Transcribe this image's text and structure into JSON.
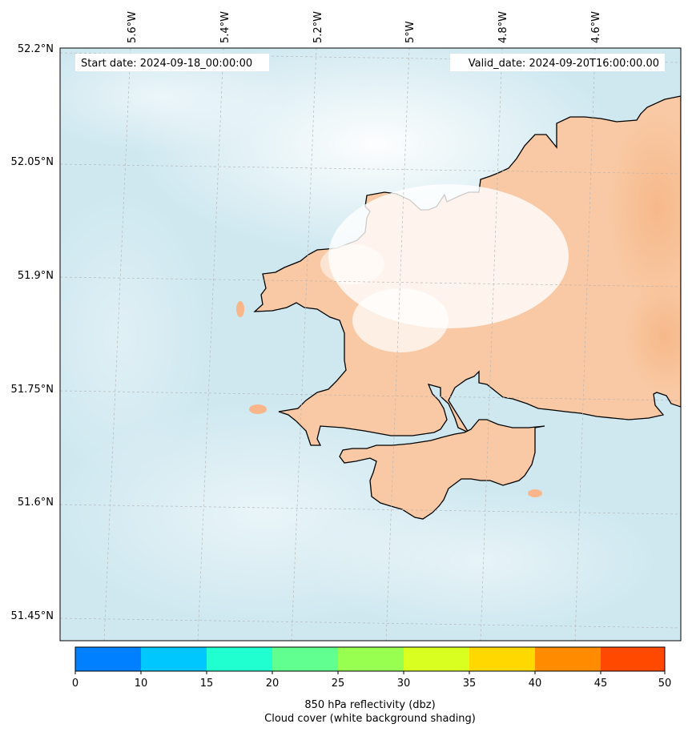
{
  "map": {
    "start_date": "Start date: 2024-09-18_00:00:00",
    "valid_date": "Valid_date: 2024-09-20T16:00:00.00",
    "longitude_labels": [
      "5.6°W",
      "5.4°W",
      "5.2°W",
      "5°W",
      "4.8°W",
      "4.6°W"
    ],
    "latitude_labels": [
      "52.2°N",
      "52.05°N",
      "51.9°N",
      "51.75°N",
      "51.6°N",
      "51.45°N"
    ],
    "land_color": "#f8c9a4",
    "sea_cloud_color": "#cfe8f0"
  },
  "colorbar": {
    "ticks": [
      "0",
      "10",
      "15",
      "20",
      "25",
      "30",
      "35",
      "40",
      "45",
      "50"
    ],
    "colors": [
      "#0080ff",
      "#00c8ff",
      "#20ffd0",
      "#60ff90",
      "#98ff50",
      "#d8ff20",
      "#ffd800",
      "#ff8c00",
      "#ff4800"
    ],
    "label_line1": "850 hPa reflectivity (dbz)",
    "label_line2": "Cloud cover (white background shading)"
  }
}
